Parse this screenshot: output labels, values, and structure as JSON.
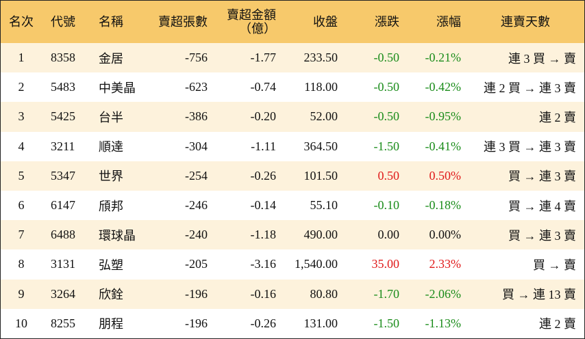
{
  "table": {
    "header": [
      "名次",
      "代號",
      "名稱",
      "賣超張數",
      [
        "賣超金額",
        "（億）"
      ],
      "收盤",
      "漲跌",
      "漲幅",
      "連賣天數"
    ],
    "rows": [
      [
        "1",
        "8358",
        "金居",
        "-756",
        "-1.77",
        "233.50",
        "-0.50",
        "-0.21%",
        "連 3 買 → 賣"
      ],
      [
        "2",
        "5483",
        "中美晶",
        "-623",
        "-0.74",
        "118.00",
        "-0.50",
        "-0.42%",
        "連 2 買 → 連 3 賣"
      ],
      [
        "3",
        "5425",
        "台半",
        "-386",
        "-0.20",
        "52.00",
        "-0.50",
        "-0.95%",
        "連 2 賣"
      ],
      [
        "4",
        "3211",
        "順達",
        "-304",
        "-1.11",
        "364.50",
        "-1.50",
        "-0.41%",
        "連 3 買 → 連 3 賣"
      ],
      [
        "5",
        "5347",
        "世界",
        "-254",
        "-0.26",
        "101.50",
        "0.50",
        "0.50%",
        "買 → 連 3 賣"
      ],
      [
        "6",
        "6147",
        "頎邦",
        "-246",
        "-0.14",
        "55.10",
        "-0.10",
        "-0.18%",
        "買 → 連 4 賣"
      ],
      [
        "7",
        "6488",
        "環球晶",
        "-240",
        "-1.18",
        "490.00",
        "0.00",
        "0.00%",
        "買 → 連 3 賣"
      ],
      [
        "8",
        "3131",
        "弘塑",
        "-205",
        "-3.16",
        "1,540.00",
        "35.00",
        "2.33%",
        "買 → 賣"
      ],
      [
        "9",
        "3264",
        "欣銓",
        "-196",
        "-0.16",
        "80.80",
        "-1.70",
        "-2.06%",
        "買 → 連 13 賣"
      ],
      [
        "10",
        "8255",
        "朋程",
        "-196",
        "-0.26",
        "131.00",
        "-1.50",
        "-1.13%",
        "連 2 賣"
      ]
    ]
  }
}
